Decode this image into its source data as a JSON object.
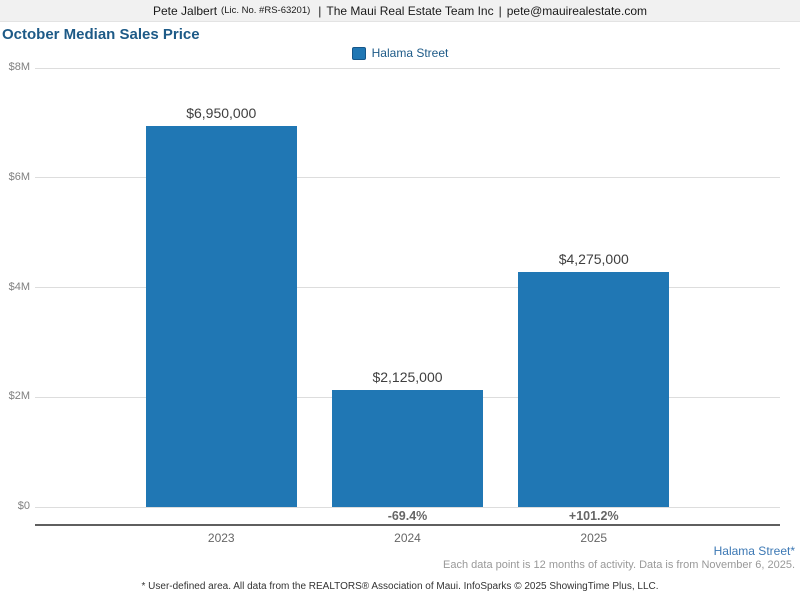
{
  "header": {
    "agent_name": "Pete Jalbert",
    "license": "(Lic. No. #RS-63201)",
    "separator1": "|",
    "company": "The Maui Real Estate Team Inc",
    "separator2": "|",
    "email": "pete@mauirealestate.com"
  },
  "title": "October Median Sales Price",
  "legend": {
    "label": "Halama Street",
    "swatch_color": "#2077B4"
  },
  "chart_data": {
    "type": "bar",
    "title": "October Median Sales Price",
    "series_name": "Halama Street",
    "categories": [
      "2023",
      "2024",
      "2025"
    ],
    "values": [
      6950000,
      2125000,
      4275000
    ],
    "value_labels": [
      "$6,950,000",
      "$2,125,000",
      "$4,275,000"
    ],
    "change_labels": [
      "",
      "-69.4%",
      "+101.2%"
    ],
    "xlabel": "",
    "ylabel": "",
    "ylim": [
      0,
      8000000
    ],
    "y_ticks": [
      {
        "value": 0,
        "label": "$0"
      },
      {
        "value": 2000000,
        "label": "$2M"
      },
      {
        "value": 4000000,
        "label": "$4M"
      },
      {
        "value": 6000000,
        "label": "$6M"
      },
      {
        "value": 8000000,
        "label": "$8M"
      }
    ],
    "grid": true,
    "legend_position": "top-center",
    "bar_color": "#2077B4"
  },
  "footnotes": {
    "series_note": "Halama Street*",
    "data_note": "Each data point is 12 months of activity. Data is from November 6, 2025.",
    "disclaimer": "* User-defined area. All data from the REALTORS® Association of Maui. InfoSparks © 2025 ShowingTime Plus, LLC."
  }
}
